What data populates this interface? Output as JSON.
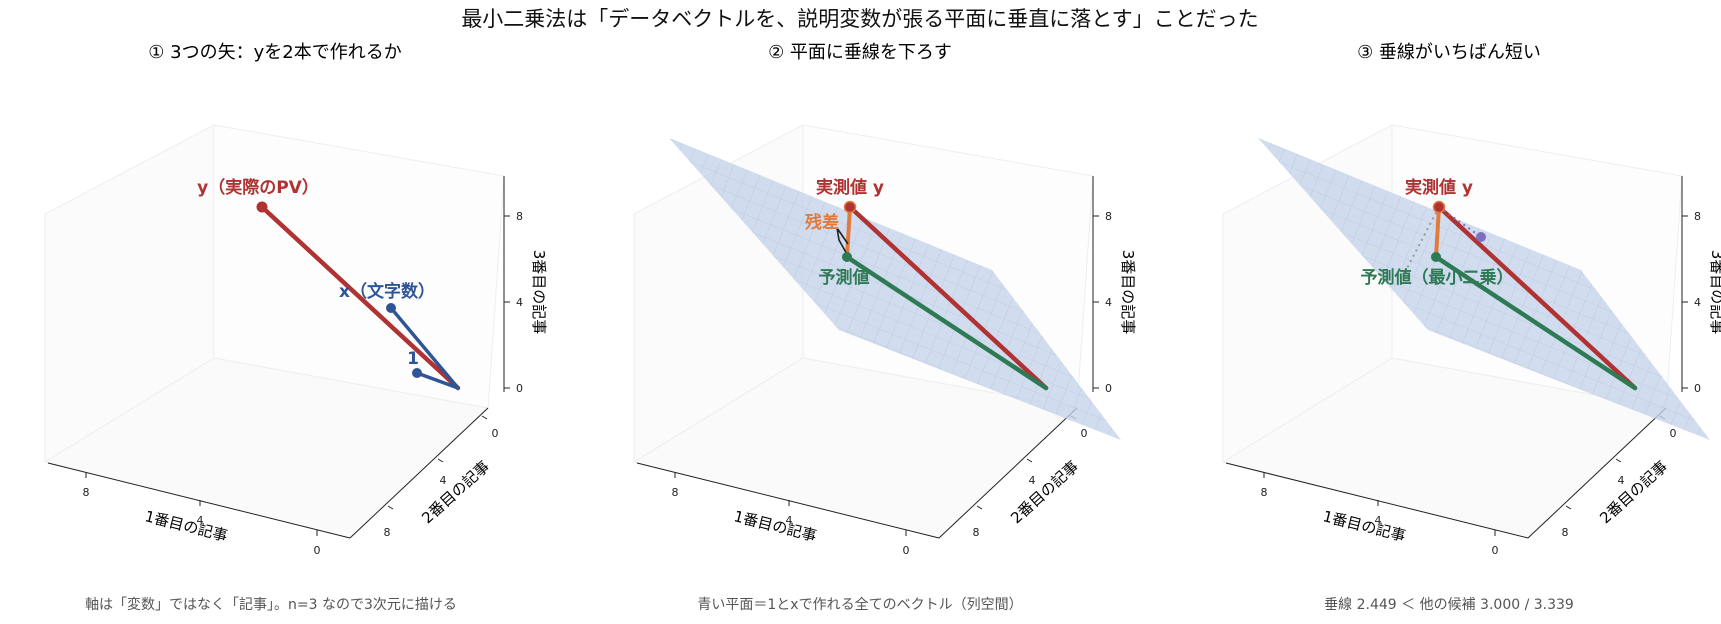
{
  "title": "最小二乗法は「データベクトルを、説明変数が張る平面に垂直に落とす」ことだった",
  "panels": [
    {
      "title": "① 3つの矢：yを2本で作れるか",
      "caption": "軸は「変数」ではなく「記事」。n=3 なので3次元に描ける",
      "axis_labels": {
        "x": "1番目の記事",
        "y": "2番目の記事",
        "z": "3番目の記事"
      },
      "ticks": {
        "x": [
          "8",
          "4",
          "0"
        ],
        "y": [
          "0",
          "4",
          "8"
        ],
        "z": [
          "0",
          "4",
          "8"
        ]
      },
      "labels": {
        "y_vec": "y（実際のPV）",
        "x_vec": "x（文字数）",
        "one_vec": "1"
      }
    },
    {
      "title": "② 平面に垂線を下ろす",
      "caption": "青い平面＝1とxで作れる全てのベクトル（列空間）",
      "axis_labels": {
        "x": "1番目の記事",
        "y": "2番目の記事",
        "z": "3番目の記事"
      },
      "ticks": {
        "x": [
          "8",
          "4",
          "0"
        ],
        "y": [
          "0",
          "4",
          "8"
        ],
        "z": [
          "0",
          "4",
          "8"
        ]
      },
      "labels": {
        "actual": "実測値 y",
        "residual": "残差",
        "predicted": "予測値"
      }
    },
    {
      "title": "③ 垂線がいちばん短い",
      "caption": "垂線 2.449 ＜ 他の候補 3.000 / 3.339",
      "axis_labels": {
        "x": "1番目の記事",
        "y": "2番目の記事",
        "z": "3番目の記事"
      },
      "ticks": {
        "x": [
          "8",
          "4",
          "0"
        ],
        "y": [
          "0",
          "4",
          "8"
        ],
        "z": [
          "0",
          "4",
          "8"
        ]
      },
      "labels": {
        "actual": "実測値 y",
        "predicted": "予測値（最小二乗）"
      }
    }
  ],
  "colors": {
    "y_vector": "#b03232",
    "x_vector": "#2f5597",
    "predicted": "#2e7a55",
    "residual": "#e07b3d",
    "plane": "#c5d3ea",
    "alt_point": "#7a6fc0",
    "caption": "#555555"
  }
}
